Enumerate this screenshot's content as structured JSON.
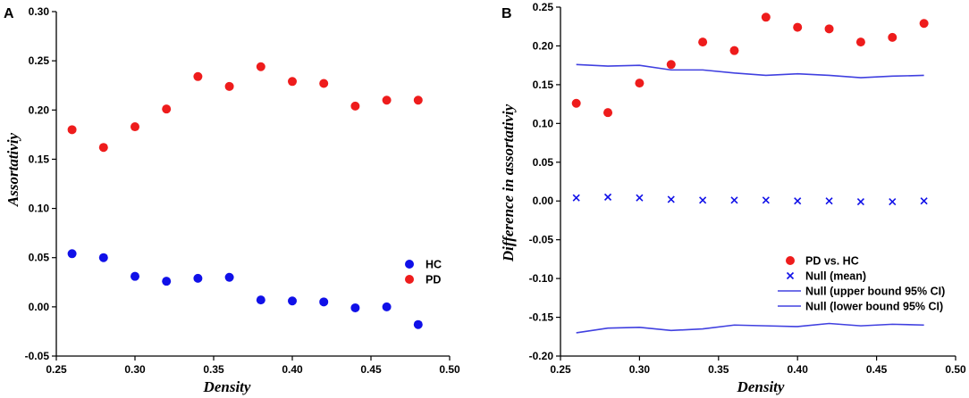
{
  "chart_data": [
    {
      "panel": "A",
      "type": "scatter",
      "xlabel": "Density",
      "ylabel": "Assortativiy",
      "xlim": [
        0.25,
        0.5
      ],
      "ylim": [
        -0.05,
        0.3
      ],
      "xticks": [
        0.25,
        0.3,
        0.35,
        0.4,
        0.45,
        0.5
      ],
      "yticks": [
        -0.05,
        0.0,
        0.05,
        0.1,
        0.15,
        0.2,
        0.25,
        0.3
      ],
      "xtick_labels": [
        "0.25",
        "0.30",
        "0.35",
        "0.40",
        "0.45",
        "0.50"
      ],
      "ytick_labels": [
        "-0.05",
        "0.00",
        "0.05",
        "0.10",
        "0.15",
        "0.20",
        "0.25",
        "0.30"
      ],
      "legend_position": "right-middle",
      "series": [
        {
          "name": "HC",
          "marker": "circle",
          "color": "#1010e8",
          "x": [
            0.26,
            0.28,
            0.3,
            0.32,
            0.34,
            0.36,
            0.38,
            0.4,
            0.42,
            0.44,
            0.46,
            0.48
          ],
          "y": [
            0.054,
            0.05,
            0.031,
            0.026,
            0.029,
            0.03,
            0.007,
            0.006,
            0.005,
            -0.001,
            0.0,
            -0.018
          ]
        },
        {
          "name": "PD",
          "marker": "circle",
          "color": "#ee1c1c",
          "x": [
            0.26,
            0.28,
            0.3,
            0.32,
            0.34,
            0.36,
            0.38,
            0.4,
            0.42,
            0.44,
            0.46,
            0.48
          ],
          "y": [
            0.18,
            0.162,
            0.183,
            0.201,
            0.234,
            0.224,
            0.244,
            0.229,
            0.227,
            0.204,
            0.21,
            0.21
          ]
        }
      ]
    },
    {
      "panel": "B",
      "type": "scatter",
      "xlabel": "Density",
      "ylabel": "Difference in assortativiy",
      "xlim": [
        0.25,
        0.5
      ],
      "ylim": [
        -0.2,
        0.25
      ],
      "xticks": [
        0.25,
        0.3,
        0.35,
        0.4,
        0.45,
        0.5
      ],
      "yticks": [
        -0.2,
        -0.15,
        -0.1,
        -0.05,
        0.0,
        0.05,
        0.1,
        0.15,
        0.2,
        0.25
      ],
      "xtick_labels": [
        "0.25",
        "0.30",
        "0.35",
        "0.40",
        "0.45",
        "0.50"
      ],
      "ytick_labels": [
        "-0.20",
        "-0.15",
        "-0.10",
        "-0.05",
        "0.00",
        "0.05",
        "0.10",
        "0.15",
        "0.20",
        "0.25"
      ],
      "legend_position": "bottom-right",
      "series": [
        {
          "name": "PD vs. HC",
          "marker": "circle",
          "color": "#ee1c1c",
          "x": [
            0.26,
            0.28,
            0.3,
            0.32,
            0.34,
            0.36,
            0.38,
            0.4,
            0.42,
            0.44,
            0.46,
            0.48
          ],
          "y": [
            0.126,
            0.114,
            0.152,
            0.176,
            0.205,
            0.194,
            0.237,
            0.224,
            0.222,
            0.205,
            0.211,
            0.229
          ]
        },
        {
          "name": "Null (mean)",
          "marker": "x",
          "color": "#1010e8",
          "x": [
            0.26,
            0.28,
            0.3,
            0.32,
            0.34,
            0.36,
            0.38,
            0.4,
            0.42,
            0.44,
            0.46,
            0.48
          ],
          "y": [
            0.004,
            0.005,
            0.004,
            0.002,
            0.001,
            0.001,
            0.001,
            0.0,
            0.0,
            -0.001,
            -0.001,
            0.0
          ]
        },
        {
          "name": "Null (upper bound 95% CI)",
          "marker": "line",
          "color": "#4040e0",
          "x": [
            0.26,
            0.28,
            0.3,
            0.32,
            0.34,
            0.36,
            0.38,
            0.4,
            0.42,
            0.44,
            0.46,
            0.48
          ],
          "y": [
            0.176,
            0.174,
            0.175,
            0.169,
            0.169,
            0.165,
            0.162,
            0.164,
            0.162,
            0.159,
            0.161,
            0.162
          ]
        },
        {
          "name": "Null (lower bound 95% CI)",
          "marker": "line",
          "color": "#4040e0",
          "x": [
            0.26,
            0.28,
            0.3,
            0.32,
            0.34,
            0.36,
            0.38,
            0.4,
            0.42,
            0.44,
            0.46,
            0.48
          ],
          "y": [
            -0.17,
            -0.164,
            -0.163,
            -0.167,
            -0.165,
            -0.16,
            -0.161,
            -0.162,
            -0.158,
            -0.161,
            -0.159,
            -0.16
          ]
        }
      ]
    }
  ]
}
